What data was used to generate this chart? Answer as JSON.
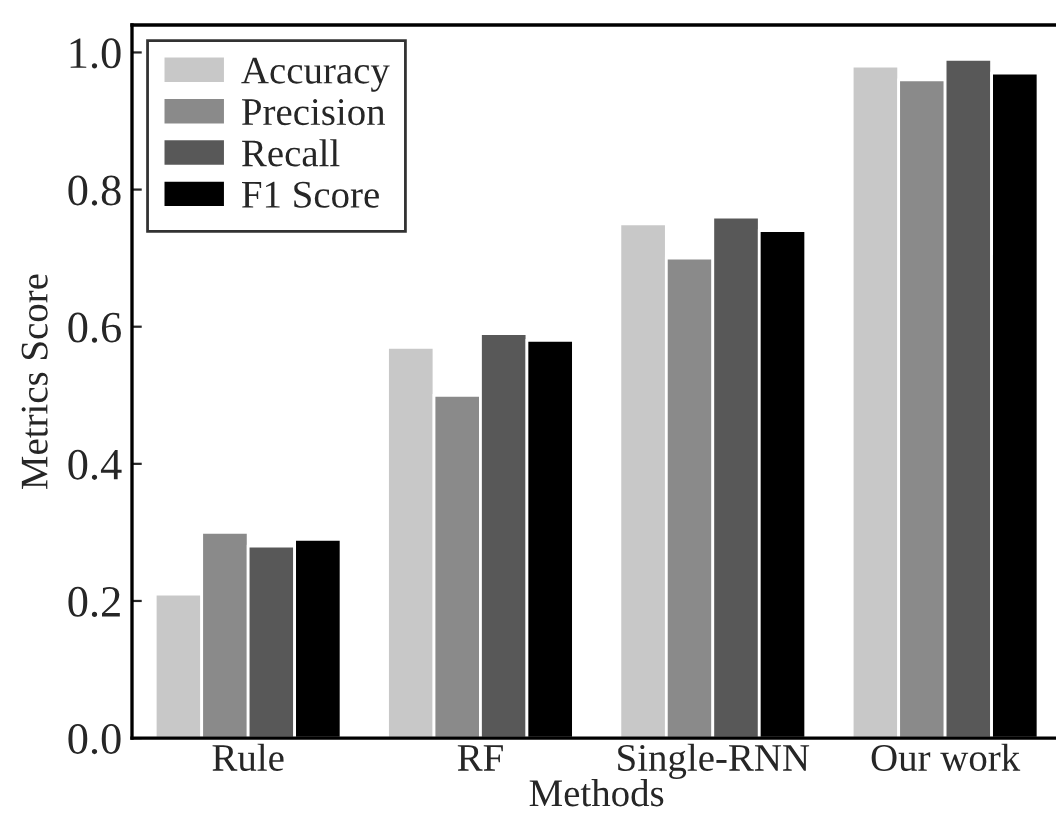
{
  "chart_data": {
    "type": "bar",
    "xlabel": "Methods",
    "ylabel": "Metrics Score",
    "categories": [
      "Rule",
      "RF",
      "Single-RNN",
      "Our work"
    ],
    "series": [
      {
        "name": "Accuracy",
        "color": "#c8c8c8",
        "values": [
          0.21,
          0.57,
          0.75,
          0.98
        ]
      },
      {
        "name": "Precision",
        "color": "#8a8a8a",
        "values": [
          0.3,
          0.5,
          0.7,
          0.96
        ]
      },
      {
        "name": "Recall",
        "color": "#585858",
        "values": [
          0.28,
          0.59,
          0.76,
          0.99
        ]
      },
      {
        "name": "F1 Score",
        "color": "#000000",
        "values": [
          0.29,
          0.58,
          0.74,
          0.97
        ]
      }
    ],
    "ylim": [
      0,
      1.04
    ],
    "yticks": [
      {
        "value": 0,
        "label": "0.0"
      },
      0.2,
      0.4,
      0.6,
      0.8,
      {
        "value": 1,
        "label": "1.0"
      }
    ],
    "grid": false,
    "legend": "top left"
  }
}
